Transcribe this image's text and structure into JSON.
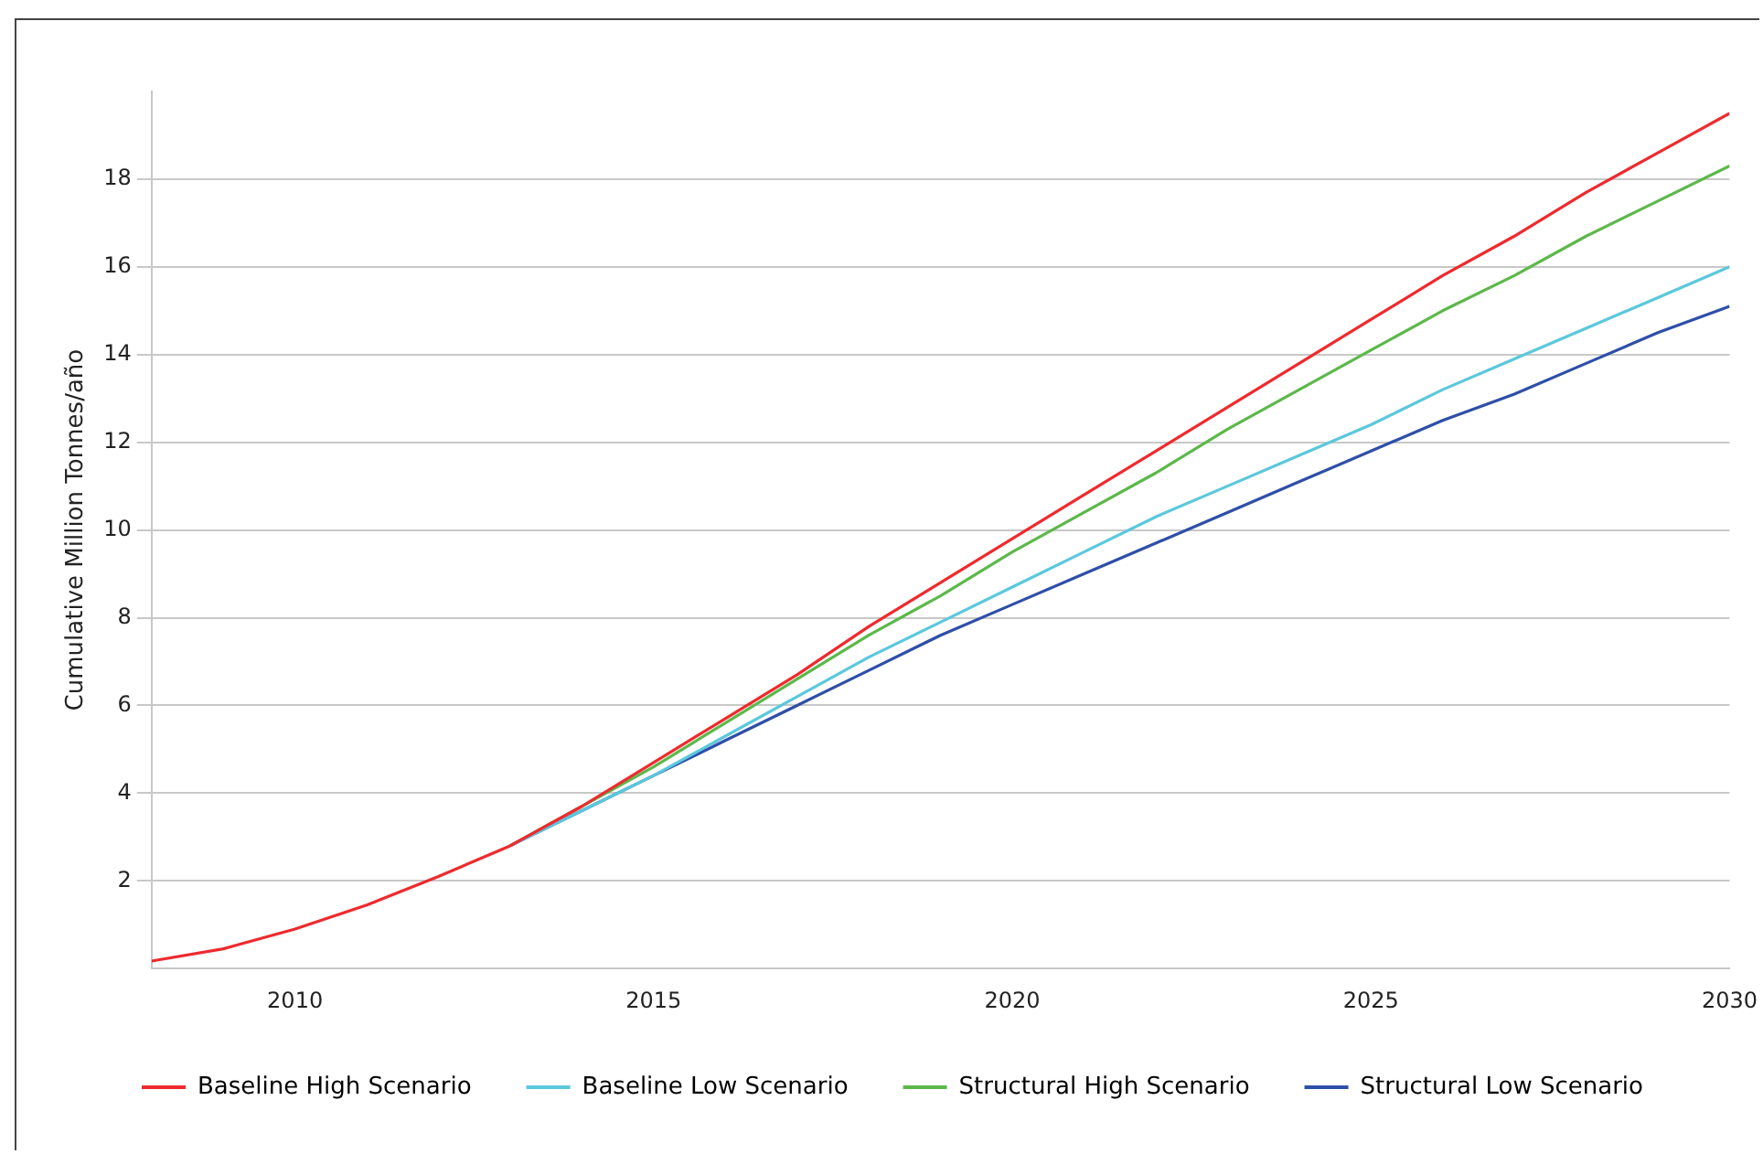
{
  "chart_data": {
    "type": "line",
    "ylabel": "Cumulative Million Tonnes/año",
    "x": [
      2008,
      2009,
      2010,
      2011,
      2012,
      2013,
      2014,
      2015,
      2016,
      2017,
      2018,
      2019,
      2020,
      2021,
      2022,
      2023,
      2024,
      2025,
      2026,
      2027,
      2028,
      2029,
      2030
    ],
    "series": [
      {
        "name": "Baseline High Scenario",
        "color": "#ee2a2e",
        "values": [
          0.17,
          0.45,
          0.9,
          1.45,
          2.1,
          2.8,
          3.7,
          4.7,
          5.7,
          6.7,
          7.8,
          8.8,
          9.8,
          10.8,
          11.8,
          12.8,
          13.8,
          14.8,
          15.8,
          16.7,
          17.7,
          18.6,
          19.5
        ]
      },
      {
        "name": "Baseline Low Scenario",
        "color": "#5bc8dc",
        "values": [
          null,
          null,
          null,
          null,
          null,
          2.8,
          3.6,
          4.4,
          5.3,
          6.2,
          7.1,
          7.9,
          8.7,
          9.5,
          10.3,
          11.0,
          11.7,
          12.4,
          13.2,
          13.9,
          14.6,
          15.3,
          16.0
        ]
      },
      {
        "name": "Structural High Scenario",
        "color": "#5cb84a",
        "values": [
          null,
          null,
          null,
          null,
          null,
          2.8,
          3.7,
          4.6,
          5.6,
          6.6,
          7.6,
          8.5,
          9.5,
          10.4,
          11.3,
          12.3,
          13.2,
          14.1,
          15.0,
          15.8,
          16.7,
          17.5,
          18.3
        ]
      },
      {
        "name": "Structural Low Scenario",
        "color": "#2e4fa8",
        "values": [
          null,
          null,
          null,
          null,
          null,
          2.8,
          3.6,
          4.4,
          5.2,
          6.0,
          6.8,
          7.6,
          8.3,
          9.0,
          9.7,
          10.4,
          11.1,
          11.8,
          12.5,
          13.1,
          13.8,
          14.5,
          15.1
        ]
      }
    ],
    "xlim": [
      2008,
      2030
    ],
    "xticks": [
      2010,
      2015,
      2020,
      2025,
      2030
    ],
    "ylim": [
      0,
      20
    ],
    "yticks": [
      2,
      4,
      6,
      8,
      10,
      12,
      14,
      16,
      18
    ],
    "grid": "y",
    "legend": "bottom",
    "marker": "none",
    "line_style": "solid"
  }
}
